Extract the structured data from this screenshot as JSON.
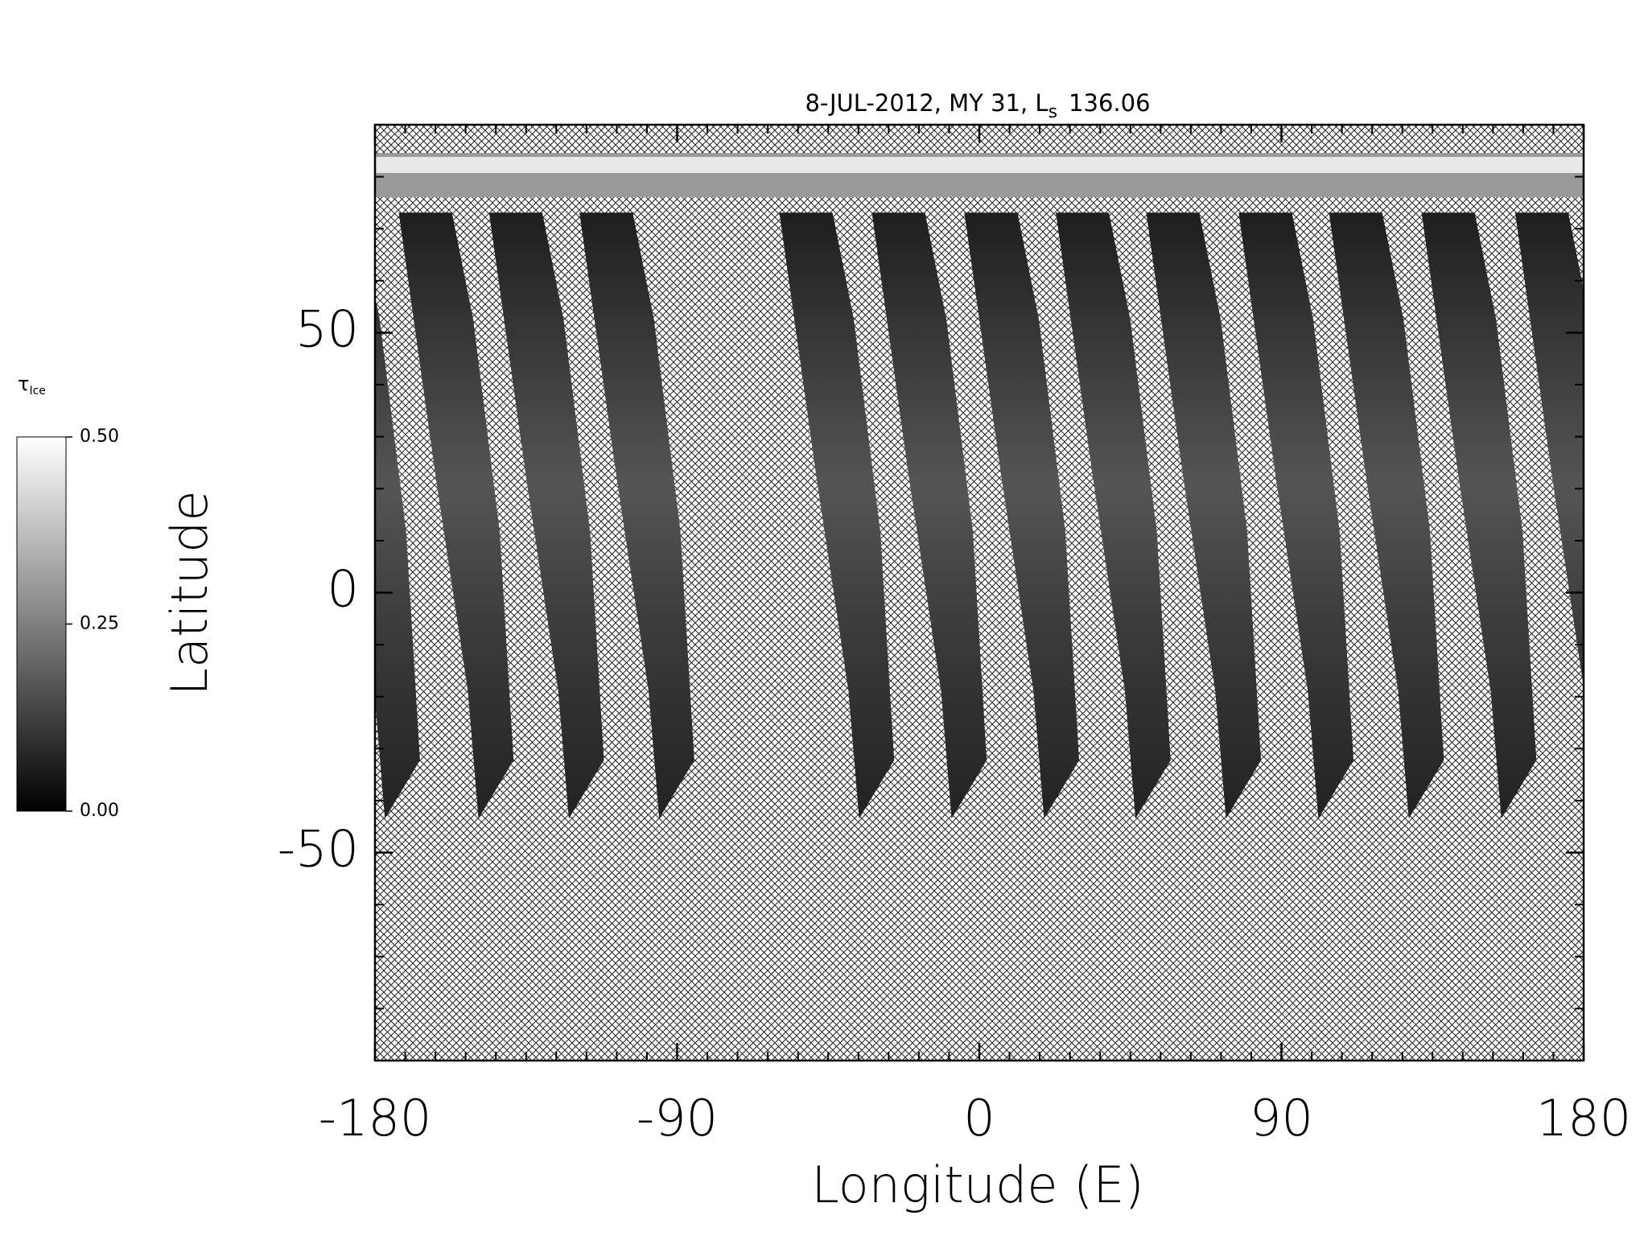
{
  "chart_data": {
    "type": "map",
    "title_parts": [
      "8-JUL-2012, MY 31,  L",
      "s",
      "136.06"
    ],
    "xlabel": "Longitude (E)",
    "ylabel": "Latitude",
    "xlim": [
      -180,
      180
    ],
    "xticks": [
      -180,
      -90,
      0,
      90,
      180
    ],
    "xminor_ticks": [
      -171,
      -162,
      -153,
      -144,
      -135,
      -126,
      -117,
      -108,
      -99,
      -81,
      -72,
      -63,
      -54,
      -45,
      -36,
      -27,
      -18,
      -9,
      9,
      18,
      27,
      36,
      45,
      54,
      63,
      72,
      81,
      99,
      108,
      117,
      126,
      135,
      144,
      153,
      162,
      171
    ],
    "ylim": [
      -90,
      90
    ],
    "yticks": [
      -50,
      0,
      50
    ],
    "yminor_ticks": [
      -80,
      -70,
      -60,
      -40,
      -30,
      -20,
      -10,
      10,
      20,
      30,
      40,
      60,
      70,
      80
    ],
    "colorbar": {
      "label": "τ",
      "label_subscript": "Ice",
      "lim": [
        0,
        0.5
      ],
      "ticks": [
        {
          "value": 0,
          "label": "0.00"
        },
        {
          "value": 0.25,
          "label": "0.25"
        },
        {
          "value": 0.5,
          "label": "0.50"
        }
      ],
      "colors": [
        "#000000",
        "#ffffff"
      ]
    }
  }
}
